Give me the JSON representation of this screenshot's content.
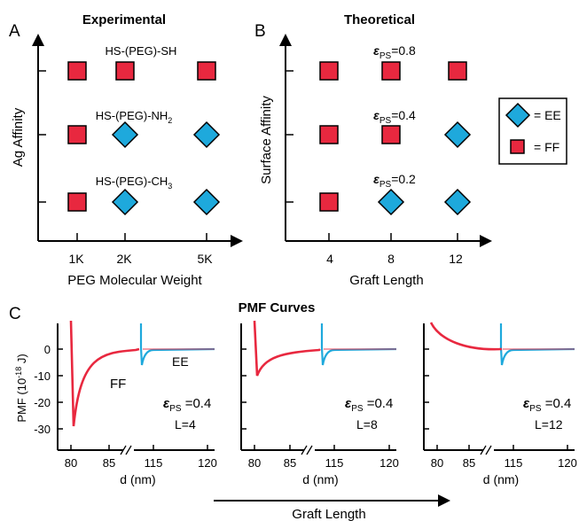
{
  "panel_letters": {
    "a": "A",
    "b": "B",
    "c": "C"
  },
  "colors": {
    "ff": "#e8283f",
    "ee": "#1ea9dc",
    "stroke": "#000000"
  },
  "legend": {
    "ee_label": "= EE",
    "ff_label": "= FF"
  },
  "chart_data": [
    {
      "type": "scatter",
      "title": "Experimental",
      "xlabel": "PEG Molecular Weight",
      "ylabel": "Ag Affinity",
      "x_ticks": [
        "1K",
        "2K",
        "5K"
      ],
      "rows": [
        {
          "label": "HS-(PEG)-SH",
          "markers": [
            "FF",
            "FF",
            "FF"
          ]
        },
        {
          "label": "HS-(PEG)-NH",
          "sub": "2",
          "markers": [
            "FF",
            "EE",
            "EE"
          ]
        },
        {
          "label": "HS-(PEG)-CH",
          "sub": "3",
          "markers": [
            "FF",
            "EE",
            "EE"
          ]
        }
      ]
    },
    {
      "type": "scatter",
      "title": "Theoretical",
      "xlabel": "Graft Length",
      "ylabel": "Surface Affinity",
      "x_ticks": [
        "4",
        "8",
        "12"
      ],
      "rows": [
        {
          "eps": "ε",
          "eps_sub": "PS",
          "value": "=0.8",
          "markers": [
            "FF",
            "FF",
            "FF"
          ]
        },
        {
          "eps": "ε",
          "eps_sub": "PS",
          "value": "=0.4",
          "markers": [
            "FF",
            "FF",
            "EE"
          ]
        },
        {
          "eps": "ε",
          "eps_sub": "PS",
          "value": "=0.2",
          "markers": [
            "FF",
            "EE",
            "EE"
          ]
        }
      ]
    },
    {
      "type": "line",
      "title": "PMF Curves",
      "ylabel": "PMF (10",
      "ylabel_sup": "-18",
      "ylabel_end": " J)",
      "ylim": [
        -35,
        10
      ],
      "y_ticks": [
        0,
        -10,
        -20,
        -30
      ],
      "xlabel": "d (nm)",
      "x_ticks_left": [
        80,
        85
      ],
      "x_ticks_right": [
        115,
        120
      ],
      "x_break": "//",
      "series_labels": {
        "ff": "FF",
        "ee": "EE"
      },
      "arrow_label": "Graft Length",
      "subplots": [
        {
          "eps": "ε",
          "eps_sub": "PS",
          "eps_value": " =0.4",
          "L_label": "L=4",
          "ff_well": {
            "x": 82.0,
            "y": -29
          },
          "ee_dip": {
            "x": 110,
            "y": -6
          }
        },
        {
          "eps": "ε",
          "eps_sub": "PS",
          "eps_value": " =0.4",
          "L_label": "L=8",
          "ff_well": {
            "x": 82.2,
            "y": -10
          },
          "ee_dip": {
            "x": 110,
            "y": -6
          }
        },
        {
          "eps": "ε",
          "eps_sub": "PS",
          "eps_value": " =0.4",
          "L_label": "L=12",
          "ff_well": null,
          "ee_dip": {
            "x": 110,
            "y": -6
          }
        }
      ]
    }
  ]
}
